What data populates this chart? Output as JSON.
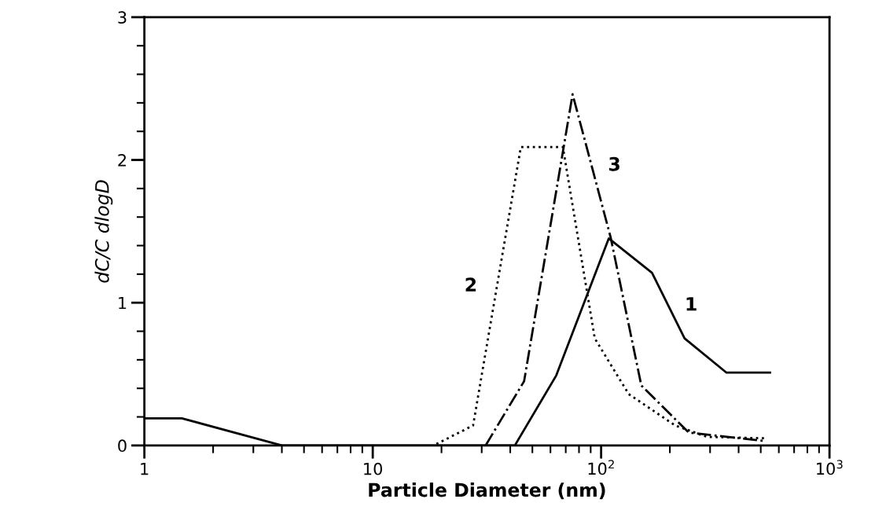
{
  "chart_data": {
    "type": "line",
    "xlabel": "Particle Diameter (nm)",
    "ylabel": "dC/C dlogD",
    "log": "x",
    "grid": false,
    "legend": false,
    "marker": "none",
    "xlim": [
      1,
      1000
    ],
    "xticks": [
      1,
      10,
      {
        "value": 100,
        "label": "10$^{2}$"
      },
      {
        "value": 1000,
        "label": "10$^{3}$"
      }
    ],
    "ylim": [
      0,
      3
    ],
    "yticks": [
      0,
      1,
      2,
      3
    ],
    "series": [
      {
        "name": "1",
        "color": "#000000",
        "line_style": "solid",
        "x": [
          1,
          1.46,
          4.0,
          41.9,
          63.6,
          108,
          167,
          232,
          354,
          549
        ],
        "values": [
          0.19,
          0.19,
          0,
          0,
          0.49,
          1.45,
          1.21,
          0.75,
          0.51,
          0.51
        ]
      },
      {
        "name": "2",
        "color": "#000000",
        "line_style": "dotted",
        "x": [
          19,
          27.5,
          44.5,
          68,
          93.8,
          132,
          211,
          291,
          526
        ],
        "values": [
          0.01,
          0.14,
          2.09,
          2.09,
          0.75,
          0.36,
          0.14,
          0.06,
          0.05
        ]
      },
      {
        "name": "3",
        "color": "#000000",
        "line_style": "dashdot",
        "x": [
          31.2,
          46,
          75,
          110,
          150,
          242,
          526
        ],
        "values": [
          0,
          0.45,
          2.46,
          1.46,
          0.42,
          0.09,
          0.03
        ]
      }
    ]
  }
}
